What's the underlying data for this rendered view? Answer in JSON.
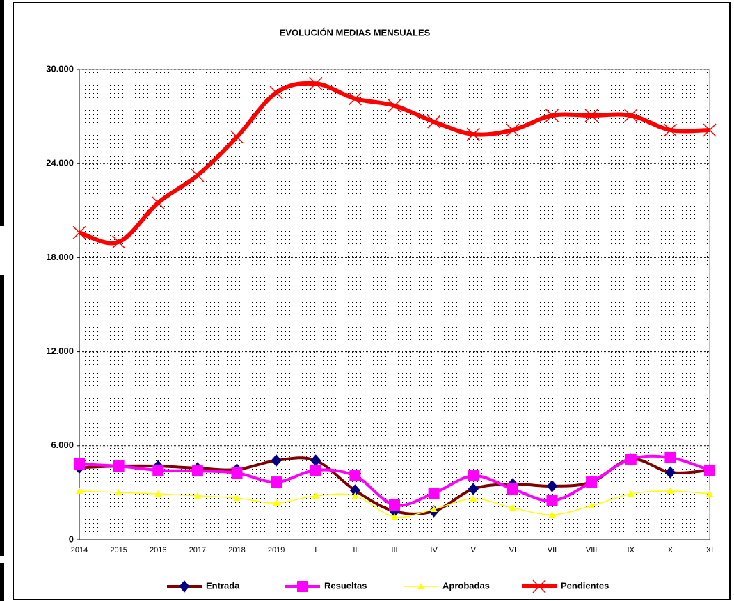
{
  "chart_data": {
    "type": "line",
    "title": "EVOLUCIÓN MEDIAS MENSUALES",
    "categories": [
      "2014",
      "2015",
      "2016",
      "2017",
      "2018",
      "2019",
      "I",
      "II",
      "III",
      "IV",
      "V",
      "VI",
      "VII",
      "VIII",
      "IX",
      "X",
      "XI"
    ],
    "ylim": [
      0,
      30000
    ],
    "yticks": [
      0,
      {
        "value": 6000,
        "label": "6.000"
      },
      {
        "value": 12000,
        "label": "12.000"
      },
      {
        "value": 18000,
        "label": "18.000"
      },
      {
        "value": 24000,
        "label": "24.000"
      },
      {
        "value": 30000,
        "label": "30.000"
      }
    ],
    "grid": true,
    "smooth": true,
    "legend": "bottom",
    "series": [
      {
        "name": "Entrada",
        "color": "#800000",
        "marker_color": "#000080",
        "marker": "diamond",
        "values": [
          4600,
          4700,
          4700,
          4570,
          4480,
          5060,
          5060,
          3150,
          1820,
          1820,
          3240,
          3550,
          3420,
          3680,
          5150,
          4300,
          4440
        ]
      },
      {
        "name": "Resueltas",
        "color": "#ff00ff",
        "marker_color": "#ff00ff",
        "marker": "square",
        "values": [
          4840,
          4700,
          4440,
          4390,
          4260,
          3680,
          4440,
          4080,
          2220,
          2970,
          4080,
          3240,
          2490,
          3680,
          5150,
          5240,
          4440
        ]
      },
      {
        "name": "Aprobadas",
        "color": "#ffff00",
        "marker_color": "#ffff00",
        "marker": "triangle",
        "values": [
          3110,
          3020,
          2930,
          2800,
          2660,
          2350,
          2800,
          2800,
          1460,
          1950,
          2620,
          2040,
          1600,
          2170,
          2930,
          3110,
          2930
        ]
      },
      {
        "name": "Pendientes",
        "color": "#ff0000",
        "marker_color": "#ff0000",
        "marker": "x",
        "values": [
          19600,
          19000,
          21500,
          23250,
          25700,
          28530,
          29100,
          28140,
          27700,
          26670,
          25870,
          26140,
          27070,
          27070,
          27070,
          26140,
          26140
        ]
      }
    ]
  }
}
